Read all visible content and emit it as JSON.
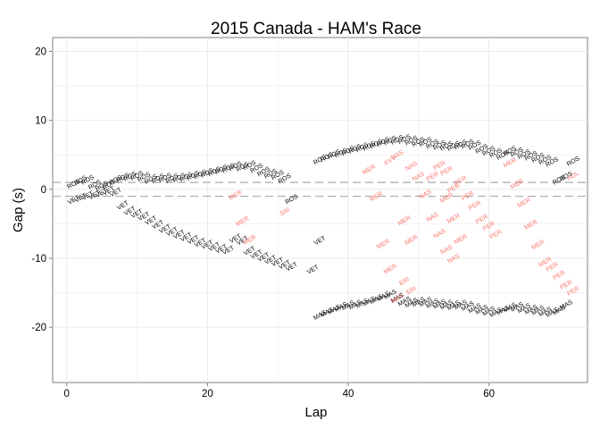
{
  "chart_data": {
    "type": "scatter",
    "title": "2015 Canada - HAM's Race",
    "xlabel": "Lap",
    "ylabel": "Gap (s)",
    "xlim": [
      -2,
      74
    ],
    "ylim": [
      -28,
      22
    ],
    "xticks": [
      0,
      20,
      40,
      60
    ],
    "yticks": [
      -20,
      -10,
      0,
      10,
      20
    ],
    "grid": true,
    "reference_lines": [
      1,
      -1
    ],
    "colors": {
      "default": "#000000",
      "highlight": "#F8766D",
      "refline": "#aaaaaa",
      "panel": "#ffffff",
      "grid": "#ebebeb"
    },
    "series": [
      {
        "name": "ROS",
        "color": "default",
        "points": [
          [
            1,
            0.7
          ],
          [
            2,
            1.2
          ],
          [
            3,
            1.3
          ],
          [
            4,
            0.6
          ],
          [
            5,
            0.4
          ],
          [
            6,
            0.6
          ],
          [
            7,
            1.3
          ],
          [
            8,
            1.6
          ],
          [
            9,
            1.8
          ],
          [
            10,
            1.9
          ],
          [
            11,
            1.7
          ],
          [
            12,
            1.4
          ],
          [
            13,
            1.5
          ],
          [
            14,
            1.6
          ],
          [
            15,
            1.5
          ],
          [
            16,
            1.6
          ],
          [
            17,
            1.7
          ],
          [
            18,
            1.9
          ],
          [
            19,
            2.1
          ],
          [
            20,
            2.3
          ],
          [
            21,
            2.5
          ],
          [
            22,
            2.8
          ],
          [
            23,
            3.0
          ],
          [
            24,
            3.3
          ],
          [
            25,
            3.2
          ],
          [
            26,
            3.4
          ],
          [
            27,
            3.0
          ],
          [
            28,
            2.5
          ],
          [
            29,
            2.2
          ],
          [
            30,
            2.0
          ],
          [
            31,
            1.5
          ],
          [
            32,
            -1.5
          ],
          [
            36,
            4.2
          ],
          [
            37,
            4.6
          ],
          [
            38,
            5.0
          ],
          [
            39,
            5.2
          ],
          [
            40,
            5.5
          ],
          [
            41,
            5.8
          ],
          [
            42,
            6.0
          ],
          [
            43,
            6.2
          ],
          [
            44,
            6.5
          ],
          [
            45,
            6.8
          ],
          [
            46,
            7.0
          ],
          [
            47,
            7.1
          ],
          [
            48,
            7.2
          ],
          [
            49,
            7.0
          ],
          [
            50,
            6.8
          ],
          [
            51,
            6.8
          ],
          [
            52,
            6.5
          ],
          [
            53,
            6.3
          ],
          [
            54,
            6.2
          ],
          [
            55,
            6.2
          ],
          [
            56,
            6.4
          ],
          [
            57,
            6.5
          ],
          [
            58,
            6.3
          ],
          [
            59,
            5.8
          ],
          [
            60,
            5.5
          ],
          [
            61,
            5.2
          ],
          [
            62,
            4.9
          ],
          [
            63,
            5.5
          ],
          [
            64,
            5.3
          ],
          [
            65,
            5.0
          ],
          [
            66,
            4.8
          ],
          [
            67,
            4.5
          ],
          [
            68,
            4.2
          ],
          [
            69,
            3.9
          ],
          [
            70,
            1.3
          ],
          [
            71,
            1.8
          ],
          [
            72,
            4.0
          ]
        ]
      },
      {
        "name": "VET",
        "color": "default",
        "points": [
          [
            1,
            -1.6
          ],
          [
            2,
            -1.3
          ],
          [
            3,
            -1.0
          ],
          [
            4,
            -0.9
          ],
          [
            5,
            -0.6
          ],
          [
            6,
            -0.3
          ],
          [
            7,
            -0.5
          ],
          [
            8,
            -2.4
          ],
          [
            9,
            -3.2
          ],
          [
            10,
            -3.6
          ],
          [
            11,
            -4.0
          ],
          [
            12,
            -4.6
          ],
          [
            13,
            -5.2
          ],
          [
            14,
            -5.8
          ],
          [
            15,
            -6.2
          ],
          [
            16,
            -6.6
          ],
          [
            17,
            -7.0
          ],
          [
            18,
            -7.4
          ],
          [
            19,
            -7.8
          ],
          [
            20,
            -8.1
          ],
          [
            21,
            -8.4
          ],
          [
            22,
            -8.7
          ],
          [
            23,
            -8.9
          ],
          [
            24,
            -7.2
          ],
          [
            25,
            -7.5
          ],
          [
            26,
            -9.0
          ],
          [
            27,
            -9.5
          ],
          [
            28,
            -9.9
          ],
          [
            29,
            -10.3
          ],
          [
            30,
            -10.6
          ],
          [
            31,
            -11.0
          ],
          [
            32,
            -11.3
          ],
          [
            35,
            -11.7
          ],
          [
            36,
            -7.5
          ]
        ]
      },
      {
        "name": "MAS",
        "color": "default",
        "points": [
          [
            36,
            -18.3
          ],
          [
            37,
            -17.9
          ],
          [
            38,
            -17.5
          ],
          [
            39,
            -17.1
          ],
          [
            40,
            -16.9
          ],
          [
            41,
            -16.8
          ],
          [
            42,
            -16.6
          ],
          [
            43,
            -16.3
          ],
          [
            44,
            -16.0
          ],
          [
            45,
            -15.6
          ],
          [
            46,
            -15.3
          ],
          [
            47,
            -15.8
          ],
          [
            48,
            -16.3
          ],
          [
            49,
            -16.5
          ],
          [
            50,
            -16.4
          ],
          [
            51,
            -16.4
          ],
          [
            52,
            -16.6
          ],
          [
            53,
            -16.7
          ],
          [
            54,
            -16.8
          ],
          [
            55,
            -16.9
          ],
          [
            56,
            -16.8
          ],
          [
            57,
            -17.0
          ],
          [
            58,
            -17.3
          ],
          [
            59,
            -17.5
          ],
          [
            60,
            -17.7
          ],
          [
            61,
            -17.9
          ],
          [
            62,
            -17.6
          ],
          [
            63,
            -17.2
          ],
          [
            64,
            -17.1
          ],
          [
            65,
            -17.3
          ],
          [
            66,
            -17.5
          ],
          [
            67,
            -17.6
          ],
          [
            68,
            -17.8
          ],
          [
            69,
            -17.9
          ],
          [
            70,
            -17.6
          ],
          [
            71,
            -16.8
          ]
        ]
      },
      {
        "name": "MER",
        "color": "highlight",
        "points": [
          [
            24,
            -0.9
          ],
          [
            25,
            -4.7
          ],
          [
            26,
            -7.4
          ],
          [
            43,
            2.8
          ],
          [
            44,
            -1.1
          ],
          [
            45,
            -8.0
          ],
          [
            46,
            -11.6
          ],
          [
            47,
            -15.9
          ],
          [
            48,
            -4.6
          ],
          [
            49,
            -7.4
          ],
          [
            54,
            -1.3
          ],
          [
            55,
            -4.3
          ],
          [
            56,
            -7.3
          ],
          [
            63,
            3.8
          ],
          [
            64,
            0.7
          ],
          [
            65,
            -2.0
          ],
          [
            66,
            -5.2
          ],
          [
            67,
            -8.1
          ],
          [
            68,
            -10.6
          ]
        ]
      },
      {
        "name": "NAS",
        "color": "highlight",
        "points": [
          [
            47,
            4.9
          ],
          [
            49,
            3.3
          ],
          [
            50,
            1.8
          ],
          [
            51,
            -0.8
          ],
          [
            52,
            -4.1
          ],
          [
            53,
            -6.5
          ],
          [
            54,
            -8.8
          ],
          [
            55,
            -10.1
          ]
        ]
      },
      {
        "name": "PER",
        "color": "highlight",
        "points": [
          [
            52,
            1.8
          ],
          [
            53,
            3.4
          ],
          [
            54,
            2.6
          ],
          [
            55,
            0.1
          ],
          [
            56,
            1.2
          ],
          [
            57,
            -1.0
          ],
          [
            58,
            -2.4
          ],
          [
            59,
            -4.4
          ],
          [
            60,
            -5.4
          ],
          [
            61,
            -6.6
          ],
          [
            69,
            -11.3
          ],
          [
            70,
            -12.5
          ],
          [
            71,
            -13.9
          ],
          [
            72,
            -14.8
          ]
        ]
      },
      {
        "name": "KVY",
        "color": "highlight",
        "points": [
          [
            46,
            4.1
          ]
        ]
      },
      {
        "name": "ERI",
        "color": "highlight",
        "points": [
          [
            48,
            -13.4
          ],
          [
            49,
            -14.7
          ]
        ]
      },
      {
        "name": "SAI",
        "color": "highlight",
        "points": [
          [
            31,
            -3.3
          ]
        ]
      },
      {
        "name": "HUL",
        "color": "highlight",
        "points": [
          [
            72,
            1.9
          ]
        ]
      }
    ]
  }
}
